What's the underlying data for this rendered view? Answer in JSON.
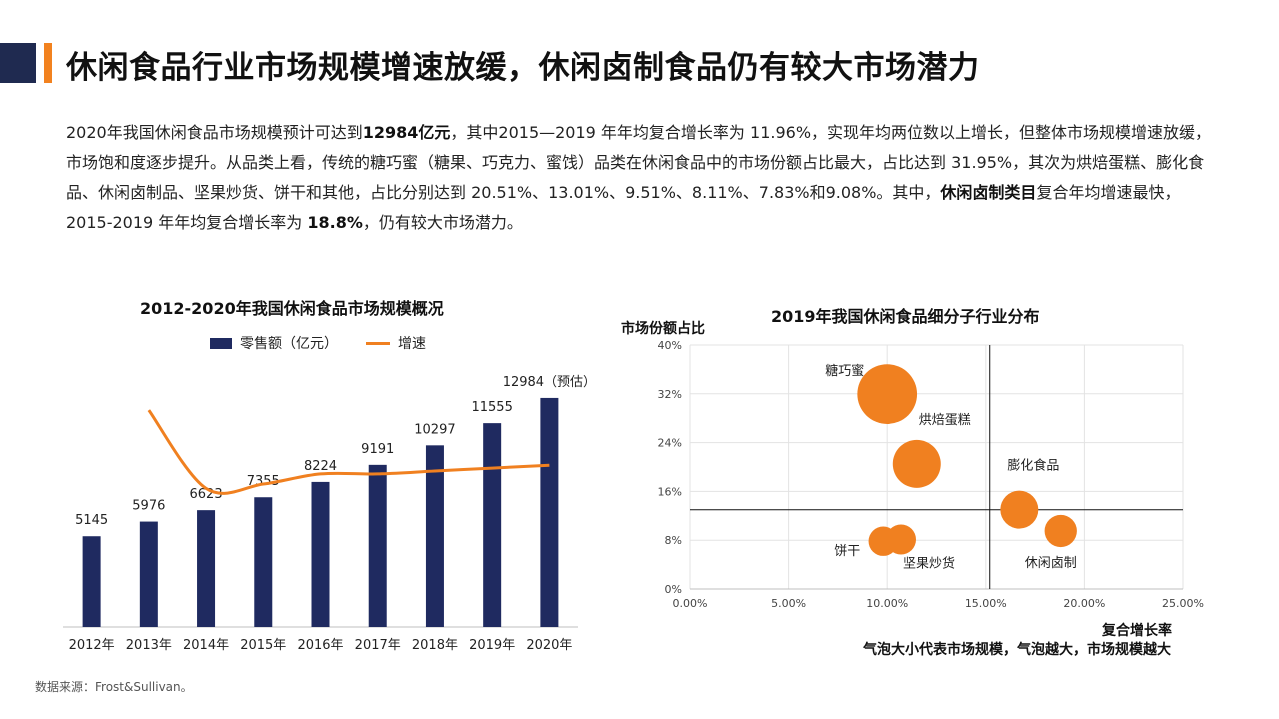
{
  "header": {
    "title": "休闲食品行业市场规模增速放缓，休闲卤制食品仍有较大市场潜力"
  },
  "intro": {
    "s1": "2020年我国休闲食品市场规模预计可达到",
    "b1": "12984亿元",
    "s2": "，其中2015—2019 年年均复合增长率为 11.96%，实现年均两位数以上增长，但整体市场规模增速放缓，市场饱和度逐步提升。从品类上看，传统的糖巧蜜（糖果、巧克力、蜜饯）品类在休闲食品中的市场份额占比最大，占比达到 31.95%，其次为烘焙蛋糕、膨化食品、休闲卤制品、坚果炒货、饼干和其他，占比分别达到 20.51%、13.01%、9.51%、8.11%、7.83%和9.08%。其中，",
    "b2": "休闲卤制类目",
    "s3": "复合年均增速最快，2015-2019 年年均复合增长率为 ",
    "b3": "18.8%",
    "s4": "，仍有较大市场潜力。"
  },
  "source": "数据来源：Frost&Sullivan。",
  "bubble_note": "气泡大小代表市场规模，气泡越大，市场规模越大",
  "colors": {
    "navy": "#1f2a60",
    "orange": "#f08020",
    "title_dark": "#1f2a50",
    "title_accent": "#f2821f"
  },
  "chart_data": [
    {
      "type": "bar",
      "title": "2012-2020年我国休闲食品市场规模概况",
      "categories": [
        "2012年",
        "2013年",
        "2014年",
        "2015年",
        "2016年",
        "2017年",
        "2018年",
        "2019年",
        "2020年"
      ],
      "series": [
        {
          "name": "零售额（亿元）",
          "type": "bar",
          "values": [
            5145,
            5976,
            6623,
            7355,
            8224,
            9191,
            10297,
            11555,
            12984
          ]
        },
        {
          "name": "增速",
          "type": "line",
          "values": [
            null,
            16.2,
            10.8,
            11.1,
            11.8,
            11.8,
            12.0,
            12.2,
            12.4
          ]
        }
      ],
      "data_labels": [
        "5145",
        "5976",
        "6623",
        "7355",
        "8224",
        "9191",
        "10297",
        "11555",
        "12984（预估）"
      ],
      "ylim": [
        0,
        14000
      ],
      "line_ylim": [
        0,
        20
      ],
      "legend": "top",
      "grid": false
    },
    {
      "type": "scatter",
      "title": "2019年我国休闲食品细分子行业分布",
      "xlabel": "复合增长率",
      "ylabel": "市场份额占比",
      "xlim": [
        0,
        0.25
      ],
      "ylim": [
        0,
        0.4
      ],
      "xticks": [
        "0.00%",
        "5.00%",
        "10.00%",
        "15.00%",
        "20.00%",
        "25.00%"
      ],
      "yticks": [
        "0%",
        "8%",
        "16%",
        "24%",
        "32%",
        "40%"
      ],
      "grid": true,
      "ref_x": 0.152,
      "ref_y": 0.13,
      "points": [
        {
          "label": "糖巧蜜",
          "x": 0.1,
          "y": 0.3195,
          "size": 9.9
        },
        {
          "label": "烘焙蛋糕",
          "x": 0.115,
          "y": 0.2051,
          "size": 6.4
        },
        {
          "label": "膨化食品",
          "x": 0.167,
          "y": 0.1301,
          "size": 4.0
        },
        {
          "label": "休闲卤制",
          "x": 0.188,
          "y": 0.0951,
          "size": 2.9
        },
        {
          "label": "饼干",
          "x": 0.098,
          "y": 0.0783,
          "size": 2.4
        },
        {
          "label": "坚果炒货",
          "x": 0.107,
          "y": 0.0811,
          "size": 2.5
        }
      ]
    }
  ]
}
